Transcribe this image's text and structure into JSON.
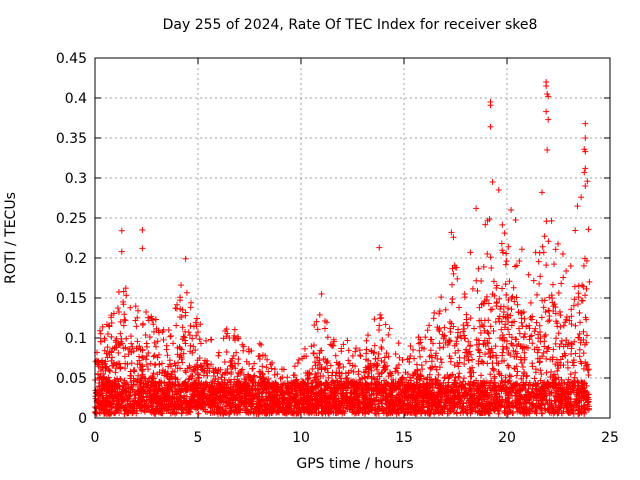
{
  "chart_data": {
    "type": "scatter",
    "title": "Day 255 of 2024, Rate Of TEC Index for receiver ske8",
    "xlabel": "GPS time / hours",
    "ylabel": "ROTI / TECUs",
    "xlim": [
      0,
      25
    ],
    "ylim": [
      0,
      0.45
    ],
    "xticks": [
      0,
      5,
      10,
      15,
      20,
      25
    ],
    "yticks": [
      0,
      0.05,
      0.1,
      0.15,
      0.2,
      0.25,
      0.3,
      0.35,
      0.4,
      0.45
    ],
    "xtick_labels": [
      "0",
      "5",
      "10",
      "15",
      "20",
      "25"
    ],
    "ytick_labels": [
      "0",
      "0.05",
      "0.1",
      "0.15",
      "0.2",
      "0.25",
      "0.3",
      "0.35",
      "0.4",
      "0.45"
    ],
    "grid": true,
    "marker": "+",
    "color": "#ff0000",
    "envelope": [
      [
        0.0,
        0.12
      ],
      [
        0.5,
        0.11
      ],
      [
        1.0,
        0.15
      ],
      [
        1.5,
        0.16
      ],
      [
        2.0,
        0.14
      ],
      [
        2.5,
        0.13
      ],
      [
        3.0,
        0.12
      ],
      [
        3.5,
        0.1
      ],
      [
        4.0,
        0.16
      ],
      [
        4.5,
        0.18
      ],
      [
        5.0,
        0.12
      ],
      [
        5.5,
        0.1
      ],
      [
        6.0,
        0.09
      ],
      [
        6.5,
        0.12
      ],
      [
        7.0,
        0.1
      ],
      [
        7.5,
        0.08
      ],
      [
        8.0,
        0.09
      ],
      [
        8.5,
        0.07
      ],
      [
        9.0,
        0.06
      ],
      [
        9.5,
        0.06
      ],
      [
        10.0,
        0.07
      ],
      [
        10.5,
        0.1
      ],
      [
        11.0,
        0.14
      ],
      [
        11.5,
        0.1
      ],
      [
        12.0,
        0.09
      ],
      [
        12.5,
        0.11
      ],
      [
        13.0,
        0.09
      ],
      [
        13.5,
        0.12
      ],
      [
        14.0,
        0.14
      ],
      [
        14.5,
        0.1
      ],
      [
        15.0,
        0.08
      ],
      [
        15.5,
        0.09
      ],
      [
        16.0,
        0.11
      ],
      [
        16.5,
        0.13
      ],
      [
        17.0,
        0.17
      ],
      [
        17.5,
        0.19
      ],
      [
        18.0,
        0.21
      ],
      [
        18.5,
        0.22
      ],
      [
        19.0,
        0.24
      ],
      [
        19.5,
        0.27
      ],
      [
        20.0,
        0.22
      ],
      [
        20.5,
        0.25
      ],
      [
        21.0,
        0.19
      ],
      [
        21.5,
        0.23
      ],
      [
        22.0,
        0.26
      ],
      [
        22.5,
        0.22
      ],
      [
        23.0,
        0.21
      ],
      [
        23.5,
        0.27
      ],
      [
        24.0,
        0.24
      ]
    ],
    "outliers": [
      [
        1.3,
        0.234
      ],
      [
        1.3,
        0.208
      ],
      [
        2.3,
        0.235
      ],
      [
        2.3,
        0.212
      ],
      [
        4.4,
        0.199
      ],
      [
        11.0,
        0.155
      ],
      [
        13.8,
        0.213
      ],
      [
        19.2,
        0.395
      ],
      [
        19.2,
        0.391
      ],
      [
        19.2,
        0.364
      ],
      [
        19.3,
        0.295
      ],
      [
        19.6,
        0.285
      ],
      [
        20.2,
        0.26
      ],
      [
        21.9,
        0.42
      ],
      [
        21.9,
        0.415
      ],
      [
        21.95,
        0.405
      ],
      [
        22.0,
        0.402
      ],
      [
        21.9,
        0.383
      ],
      [
        22.0,
        0.373
      ],
      [
        21.95,
        0.335
      ],
      [
        21.7,
        0.282
      ],
      [
        23.8,
        0.368
      ],
      [
        23.8,
        0.35
      ],
      [
        23.75,
        0.336
      ],
      [
        23.8,
        0.333
      ],
      [
        23.8,
        0.312
      ],
      [
        23.75,
        0.307
      ],
      [
        23.8,
        0.29
      ],
      [
        23.9,
        0.296
      ],
      [
        23.6,
        0.276
      ],
      [
        18.5,
        0.262
      ],
      [
        17.3,
        0.232
      ],
      [
        17.4,
        0.226
      ]
    ]
  }
}
